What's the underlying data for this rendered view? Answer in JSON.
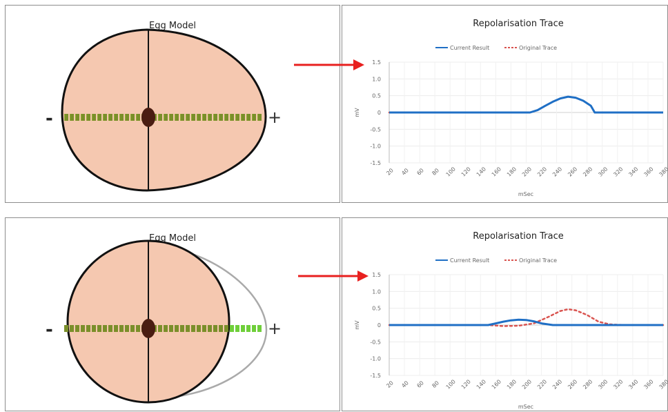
{
  "panels": {
    "egg_top": {
      "title": "Egg Model",
      "neg_label": "-",
      "pos_label": "+"
    },
    "trace_top": {
      "title": "Repolarisation Trace"
    },
    "egg_bottom": {
      "title": "Egg Model",
      "neg_label": "-",
      "pos_label": "+"
    },
    "trace_bottom": {
      "title": "Repolarisation Trace"
    }
  },
  "colors": {
    "current": "#1f6fc5",
    "original": "#d9534f",
    "egg_fill": "#f5c8b0",
    "arrow": "#e8201f",
    "electrode": "#7a8f2a",
    "electrode_bright": "#6fcf3a"
  },
  "chart_data": [
    {
      "type": "line",
      "title": "Repolarisation Trace",
      "xlabel": "mSec",
      "ylabel": "mV",
      "xlim": [
        20,
        380
      ],
      "ylim": [
        -1.5,
        1.5
      ],
      "xticks": [
        "20",
        "40",
        "60",
        "80",
        "100",
        "120",
        "140",
        "160",
        "180",
        "200",
        "220",
        "240",
        "260",
        "280",
        "300",
        "320",
        "340",
        "360",
        "380"
      ],
      "yticks": [
        "1.5",
        "1.0",
        "0.5",
        "0",
        "-0.5",
        "-1.0",
        "-1.5"
      ],
      "grid": true,
      "legend": "top",
      "series": [
        {
          "name": "Current Result",
          "style": "solid",
          "x": [
            20,
            100,
            200,
            205,
            215,
            225,
            235,
            245,
            255,
            265,
            275,
            285,
            290,
            300,
            380
          ],
          "y": [
            0,
            0,
            0,
            0,
            0.07,
            0.2,
            0.32,
            0.42,
            0.47,
            0.44,
            0.35,
            0.2,
            0,
            0,
            0
          ]
        },
        {
          "name": "Original Trace",
          "style": "dashed",
          "x": [
            20,
            100,
            200,
            205,
            215,
            225,
            235,
            245,
            255,
            265,
            275,
            285,
            290,
            300,
            380
          ],
          "y": [
            0,
            0,
            0,
            0,
            0.07,
            0.2,
            0.32,
            0.42,
            0.47,
            0.44,
            0.35,
            0.2,
            0,
            0,
            0
          ]
        }
      ]
    },
    {
      "type": "line",
      "title": "Repolarisation Trace",
      "xlabel": "mSec",
      "ylabel": "mV",
      "xlim": [
        20,
        380
      ],
      "ylim": [
        -1.5,
        1.5
      ],
      "xticks": [
        "20",
        "40",
        "60",
        "80",
        "100",
        "120",
        "140",
        "160",
        "180",
        "200",
        "220",
        "240",
        "260",
        "280",
        "300",
        "320",
        "340",
        "360",
        "380"
      ],
      "yticks": [
        "1.5",
        "1.0",
        "0.5",
        "0",
        "-0.5",
        "-1.0",
        "-1.5"
      ],
      "grid": true,
      "legend": "top",
      "series": [
        {
          "name": "Current Result",
          "style": "solid",
          "x": [
            20,
            100,
            150,
            160,
            170,
            180,
            190,
            200,
            210,
            220,
            235,
            250,
            380
          ],
          "y": [
            0,
            0,
            0,
            0.05,
            0.1,
            0.14,
            0.16,
            0.15,
            0.11,
            0.05,
            0,
            0,
            0
          ]
        },
        {
          "name": "Original Trace",
          "style": "dashed",
          "x": [
            20,
            150,
            170,
            190,
            210,
            230,
            245,
            255,
            265,
            280,
            295,
            310,
            330,
            380
          ],
          "y": [
            0,
            0,
            -0.03,
            -0.02,
            0.05,
            0.25,
            0.42,
            0.47,
            0.44,
            0.3,
            0.1,
            0.02,
            0,
            0
          ]
        }
      ]
    }
  ]
}
